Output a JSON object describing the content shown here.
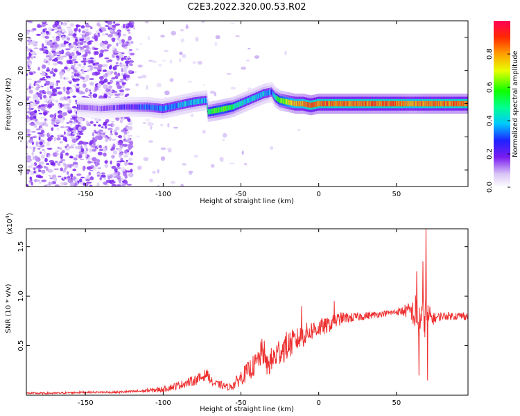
{
  "figure_title": "C2E3.2022.320.00.53.R02",
  "chart_data": [
    {
      "type": "heatmap",
      "xlabel": "Height of straight line (km)",
      "ylabel": "Frequency (Hz)",
      "xlim": [
        -188,
        96
      ],
      "ylim": [
        -50,
        50
      ],
      "xticks": [
        -150,
        -100,
        -50,
        0,
        50
      ],
      "yticks": [
        -40,
        -20,
        0,
        20,
        40
      ],
      "colorbar": {
        "label": "Normalized spectral amplitude",
        "range": [
          0,
          1
        ],
        "ticks": [
          0.0,
          0.2,
          0.4,
          0.6,
          0.8
        ],
        "tick_labels": [
          "0.0",
          "0.2",
          "0.4",
          "0.6",
          "0.8"
        ]
      },
      "ridge": {
        "x": [
          -155,
          -140,
          -125,
          -110,
          -100,
          -90,
          -80,
          -72,
          -71,
          -65,
          -60,
          -55,
          -50,
          -45,
          -40,
          -35,
          -30,
          -28,
          -25,
          -20,
          -15,
          -10,
          -5,
          0,
          10,
          20,
          30,
          40,
          50,
          60,
          70,
          80,
          96
        ],
        "frequency": [
          -2,
          -3,
          -2,
          -2,
          -3,
          -1,
          1,
          2,
          -5,
          -4,
          -3,
          -2,
          0,
          2,
          4,
          6,
          7,
          4,
          2,
          1,
          0,
          0,
          -1,
          0,
          0,
          0,
          0,
          0,
          0,
          0,
          0,
          0,
          0
        ],
        "amplitude": [
          0.15,
          0.15,
          0.2,
          0.3,
          0.35,
          0.35,
          0.4,
          0.35,
          0.5,
          0.6,
          0.6,
          0.5,
          0.45,
          0.4,
          0.4,
          0.4,
          0.3,
          0.45,
          0.6,
          0.7,
          0.8,
          0.8,
          0.9,
          0.85,
          0.85,
          0.85,
          0.85,
          0.85,
          0.85,
          0.8,
          0.85,
          0.85,
          0.85
        ]
      }
    },
    {
      "type": "line",
      "xlabel": "Height of straight line (km)",
      "ylabel": "SNR (10 * v/v)",
      "scale_label": "(x10",
      "scale_exponent": "4",
      "scale_close": ")",
      "xlim": [
        -188,
        96
      ],
      "ylim": [
        0,
        1.68
      ],
      "xticks": [
        -150,
        -100,
        -50,
        0,
        50
      ],
      "yticks": [
        0.5,
        1.0,
        1.5
      ],
      "ytick_labels": [
        "0.5",
        "1.0",
        "1.5"
      ],
      "color": "#ee3030",
      "series": [
        {
          "x": [
            -188,
            -170,
            -150,
            -130,
            -115,
            -100,
            -90,
            -80,
            -75,
            -72,
            -68,
            -62,
            -58,
            -55,
            -50,
            -45,
            -40,
            -36,
            -34,
            -30,
            -25,
            -20,
            -15,
            -10,
            -5,
            0,
            5,
            10,
            15,
            20,
            30,
            40,
            50,
            55,
            60,
            63,
            65,
            67,
            69,
            70,
            72,
            75,
            80,
            85,
            90,
            96
          ],
          "y": [
            0.02,
            0.02,
            0.03,
            0.03,
            0.04,
            0.06,
            0.1,
            0.15,
            0.18,
            0.22,
            0.12,
            0.1,
            0.08,
            0.1,
            0.18,
            0.25,
            0.32,
            0.45,
            0.3,
            0.35,
            0.45,
            0.5,
            0.55,
            0.6,
            0.65,
            0.68,
            0.7,
            0.74,
            0.78,
            0.78,
            0.8,
            0.82,
            0.84,
            0.85,
            0.85,
            0.75,
            0.8,
            0.75,
            0.85,
            0.8,
            0.78,
            0.78,
            0.8,
            0.8,
            0.8,
            0.8
          ],
          "noise": [
            0.01,
            0.01,
            0.01,
            0.01,
            0.015,
            0.03,
            0.04,
            0.05,
            0.06,
            0.05,
            0.04,
            0.04,
            0.03,
            0.05,
            0.08,
            0.1,
            0.12,
            0.14,
            0.12,
            0.14,
            0.15,
            0.15,
            0.12,
            0.12,
            0.1,
            0.1,
            0.08,
            0.08,
            0.06,
            0.05,
            0.04,
            0.03,
            0.03,
            0.06,
            0.1,
            0.3,
            0.25,
            0.2,
            0.25,
            0.15,
            0.1,
            0.05,
            0.04,
            0.04,
            0.04,
            0.04
          ]
        }
      ],
      "peaks": [
        {
          "x": 69,
          "y": 1.68
        },
        {
          "x": 67,
          "y": 1.35
        },
        {
          "x": 63,
          "y": 1.25
        },
        {
          "x": 64.5,
          "y": 0.2
        },
        {
          "x": 70,
          "y": 0.15
        },
        {
          "x": -35,
          "y": 0.55
        },
        {
          "x": -11,
          "y": 0.9
        },
        {
          "x": 10,
          "y": 0.95
        }
      ]
    }
  ]
}
